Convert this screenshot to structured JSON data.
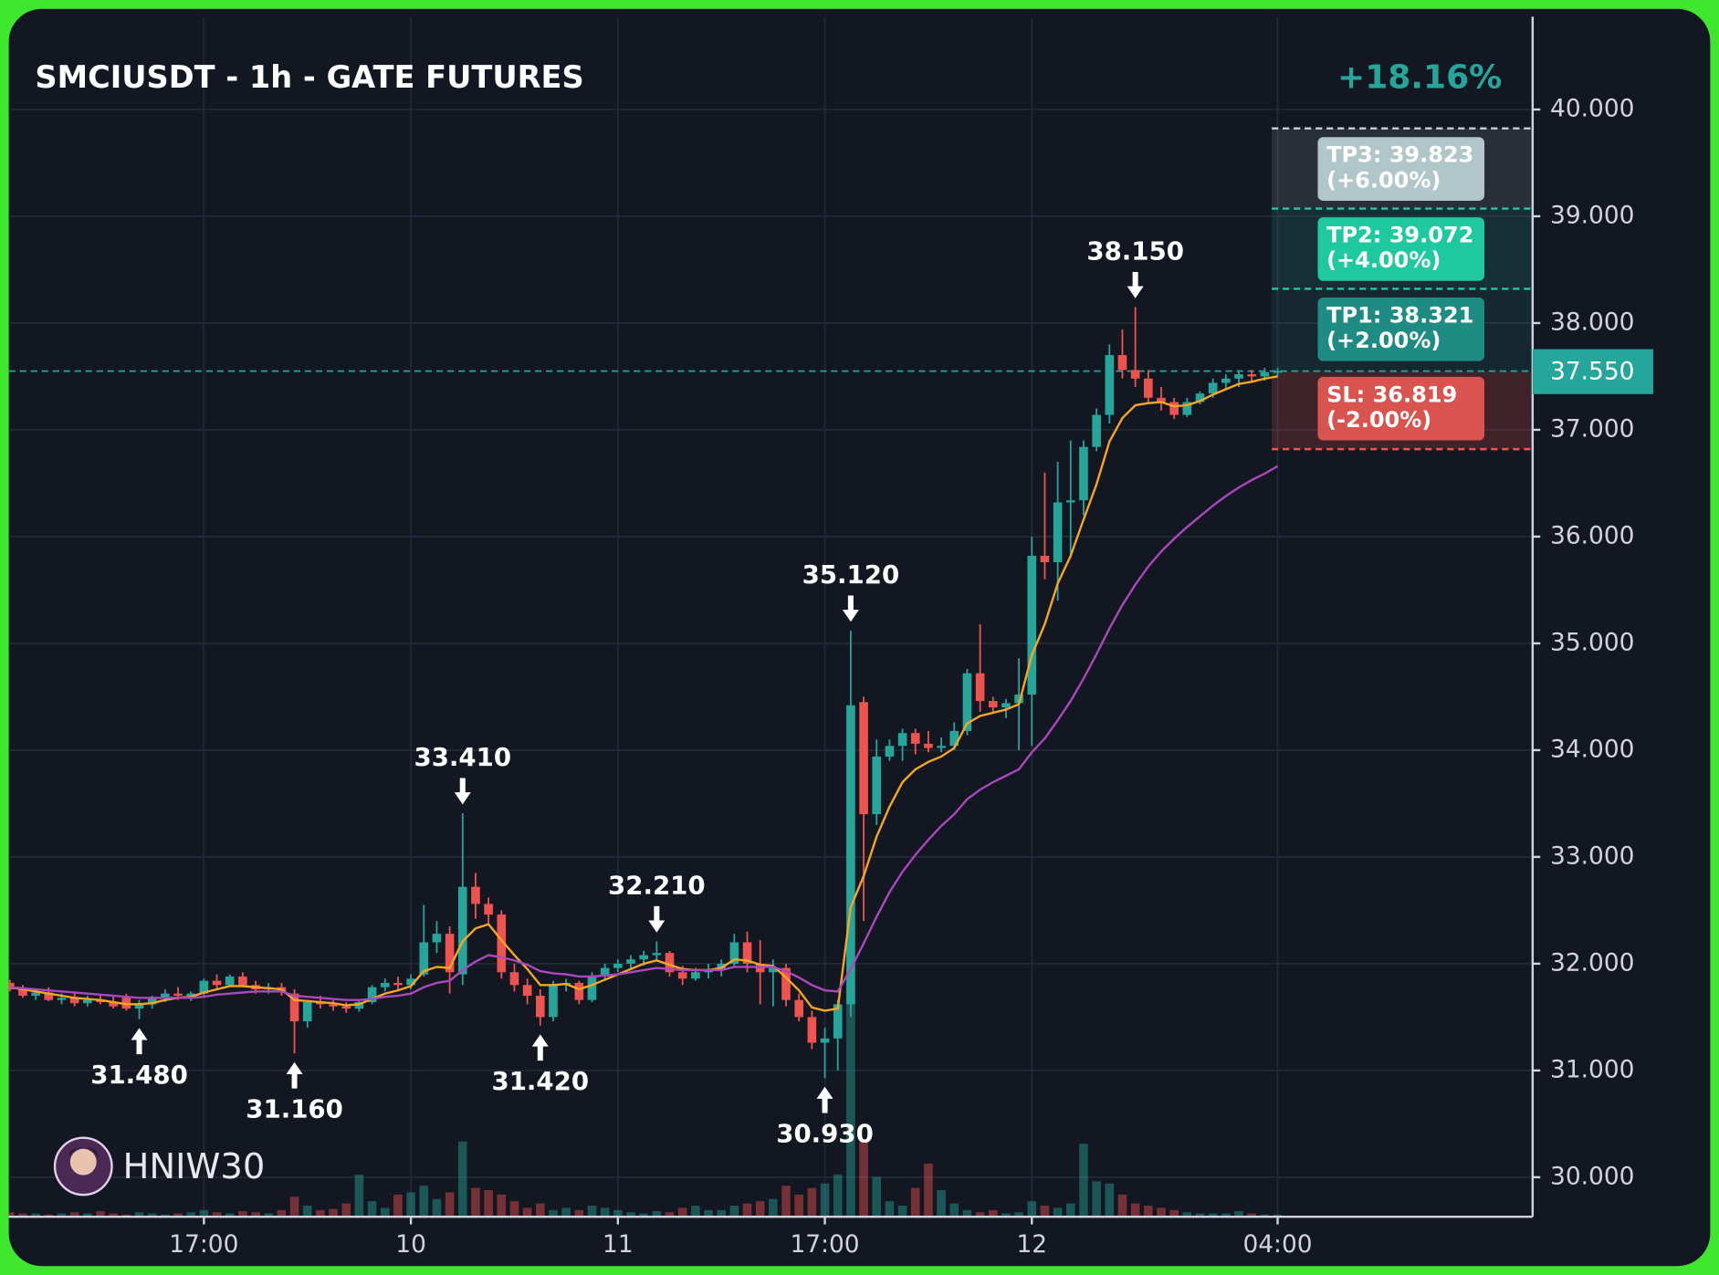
{
  "chart_data": {
    "type": "candlestick",
    "title": "SMCIUSDT - 1h - GATE FUTURES",
    "change": "+18.16%",
    "watermark": "HNIW30",
    "categories": [
      null,
      null,
      null,
      null,
      null,
      null,
      null,
      null,
      null,
      null,
      null,
      null,
      null,
      null,
      null,
      "17:00",
      null,
      null,
      null,
      null,
      null,
      null,
      null,
      null,
      null,
      null,
      null,
      null,
      null,
      null,
      null,
      "10",
      null,
      null,
      null,
      null,
      null,
      null,
      null,
      null,
      null,
      null,
      null,
      null,
      null,
      null,
      null,
      "11",
      null,
      null,
      null,
      null,
      null,
      null,
      null,
      null,
      null,
      null,
      null,
      null,
      null,
      null,
      null,
      "17:00",
      null,
      null,
      null,
      null,
      null,
      null,
      null,
      null,
      null,
      null,
      null,
      null,
      null,
      null,
      null,
      "12",
      null,
      null,
      null,
      null,
      null,
      null,
      null,
      null,
      null,
      null,
      null,
      null,
      null,
      null,
      null,
      null,
      null,
      null,
      "04:00"
    ],
    "ohlc": [
      [
        31.82,
        31.85,
        31.74,
        31.76
      ],
      [
        31.76,
        31.8,
        31.68,
        31.7
      ],
      [
        31.7,
        31.76,
        31.66,
        31.73
      ],
      [
        31.73,
        31.78,
        31.65,
        31.66
      ],
      [
        31.66,
        31.72,
        31.62,
        31.68
      ],
      [
        31.68,
        31.72,
        31.6,
        31.63
      ],
      [
        31.63,
        31.7,
        31.6,
        31.66
      ],
      [
        31.66,
        31.7,
        31.62,
        31.64
      ],
      [
        31.64,
        31.7,
        31.58,
        31.6
      ],
      [
        31.68,
        31.72,
        31.56,
        31.58
      ],
      [
        31.58,
        31.66,
        31.48,
        31.62
      ],
      [
        31.62,
        31.7,
        31.58,
        31.68
      ],
      [
        31.68,
        31.76,
        31.64,
        31.72
      ],
      [
        31.72,
        31.78,
        31.66,
        31.7
      ],
      [
        31.7,
        31.74,
        31.65,
        31.72
      ],
      [
        31.72,
        31.86,
        31.7,
        31.84
      ],
      [
        31.84,
        31.9,
        31.76,
        31.8
      ],
      [
        31.8,
        31.9,
        31.78,
        31.88
      ],
      [
        31.88,
        31.92,
        31.78,
        31.8
      ],
      [
        31.8,
        31.84,
        31.72,
        31.76
      ],
      [
        31.76,
        31.82,
        31.72,
        31.78
      ],
      [
        31.78,
        31.82,
        31.7,
        31.74
      ],
      [
        31.72,
        31.76,
        31.16,
        31.46
      ],
      [
        31.46,
        31.66,
        31.4,
        31.64
      ],
      [
        31.64,
        31.7,
        31.58,
        31.62
      ],
      [
        31.62,
        31.66,
        31.56,
        31.6
      ],
      [
        31.6,
        31.64,
        31.54,
        31.58
      ],
      [
        31.58,
        31.66,
        31.55,
        31.64
      ],
      [
        31.64,
        31.8,
        31.62,
        31.78
      ],
      [
        31.78,
        31.86,
        31.74,
        31.82
      ],
      [
        31.82,
        31.88,
        31.74,
        31.8
      ],
      [
        31.8,
        31.9,
        31.76,
        31.86
      ],
      [
        31.9,
        32.55,
        31.88,
        32.2
      ],
      [
        32.2,
        32.4,
        32.1,
        32.28
      ],
      [
        32.28,
        32.35,
        31.72,
        31.92
      ],
      [
        31.9,
        33.41,
        31.8,
        32.72
      ],
      [
        32.72,
        32.85,
        32.42,
        32.56
      ],
      [
        32.56,
        32.62,
        32.38,
        32.46
      ],
      [
        32.46,
        32.5,
        31.86,
        31.92
      ],
      [
        31.92,
        32.0,
        31.74,
        31.8
      ],
      [
        31.8,
        31.86,
        31.62,
        31.7
      ],
      [
        31.7,
        31.76,
        31.42,
        31.5
      ],
      [
        31.5,
        31.84,
        31.46,
        31.8
      ],
      [
        31.8,
        31.86,
        31.74,
        31.82
      ],
      [
        31.82,
        31.84,
        31.62,
        31.66
      ],
      [
        31.66,
        31.92,
        31.64,
        31.88
      ],
      [
        31.88,
        32.0,
        31.84,
        31.96
      ],
      [
        31.96,
        32.04,
        31.92,
        32.0
      ],
      [
        32.0,
        32.08,
        31.94,
        32.04
      ],
      [
        32.04,
        32.12,
        31.98,
        32.08
      ],
      [
        32.08,
        32.21,
        32.02,
        32.1
      ],
      [
        32.1,
        32.12,
        31.88,
        31.92
      ],
      [
        31.92,
        31.98,
        31.8,
        31.86
      ],
      [
        31.86,
        31.96,
        31.84,
        31.92
      ],
      [
        31.92,
        32.0,
        31.86,
        31.94
      ],
      [
        31.94,
        32.04,
        31.88,
        32.0
      ],
      [
        32.0,
        32.28,
        31.96,
        32.2
      ],
      [
        32.2,
        32.3,
        31.92,
        32.0
      ],
      [
        32.0,
        32.22,
        31.62,
        31.92
      ],
      [
        31.92,
        32.04,
        31.6,
        31.96
      ],
      [
        31.96,
        32.0,
        31.6,
        31.66
      ],
      [
        31.66,
        31.72,
        31.46,
        31.5
      ],
      [
        31.5,
        31.56,
        31.2,
        31.26
      ],
      [
        31.26,
        31.4,
        30.93,
        31.3
      ],
      [
        31.3,
        31.66,
        31.0,
        31.62
      ],
      [
        31.62,
        35.12,
        31.5,
        34.42
      ],
      [
        34.45,
        34.5,
        32.4,
        33.4
      ],
      [
        33.4,
        34.1,
        33.3,
        33.94
      ],
      [
        33.94,
        34.1,
        33.9,
        34.04
      ],
      [
        34.04,
        34.2,
        33.9,
        34.16
      ],
      [
        34.16,
        34.2,
        33.96,
        34.06
      ],
      [
        34.06,
        34.18,
        33.98,
        34.02
      ],
      [
        34.02,
        34.12,
        33.98,
        34.04
      ],
      [
        34.04,
        34.26,
        34.0,
        34.18
      ],
      [
        34.18,
        34.76,
        34.14,
        34.72
      ],
      [
        34.72,
        35.18,
        34.36,
        34.46
      ],
      [
        34.46,
        34.5,
        34.36,
        34.4
      ],
      [
        34.4,
        34.48,
        34.3,
        34.44
      ],
      [
        34.44,
        34.86,
        34.0,
        34.52
      ],
      [
        34.52,
        36.0,
        34.04,
        35.82
      ],
      [
        35.82,
        36.6,
        35.6,
        35.76
      ],
      [
        35.76,
        36.7,
        35.4,
        36.32
      ],
      [
        36.32,
        36.9,
        35.8,
        36.34
      ],
      [
        36.34,
        36.9,
        36.2,
        36.84
      ],
      [
        36.84,
        37.2,
        36.8,
        37.14
      ],
      [
        37.14,
        37.8,
        37.06,
        37.7
      ],
      [
        37.7,
        37.94,
        37.48,
        37.56
      ],
      [
        37.56,
        38.15,
        37.4,
        37.48
      ],
      [
        37.48,
        37.56,
        37.26,
        37.3
      ],
      [
        37.3,
        37.4,
        37.18,
        37.26
      ],
      [
        37.26,
        37.3,
        37.1,
        37.14
      ],
      [
        37.14,
        37.3,
        37.12,
        37.26
      ],
      [
        37.26,
        37.36,
        37.24,
        37.34
      ],
      [
        37.34,
        37.48,
        37.3,
        37.44
      ],
      [
        37.44,
        37.52,
        37.38,
        37.48
      ],
      [
        37.48,
        37.56,
        37.4,
        37.52
      ],
      [
        37.52,
        37.56,
        37.44,
        37.5
      ],
      [
        37.5,
        37.58,
        37.46,
        37.54
      ],
      [
        37.54,
        37.58,
        37.5,
        37.55
      ]
    ],
    "volume": [
      4,
      3,
      3,
      2,
      3,
      4,
      3,
      5,
      3,
      2,
      4,
      3,
      2,
      3,
      4,
      6,
      4,
      3,
      5,
      4,
      3,
      6,
      18,
      10,
      6,
      7,
      12,
      38,
      14,
      8,
      20,
      22,
      28,
      16,
      22,
      68,
      26,
      24,
      20,
      14,
      8,
      12,
      6,
      8,
      6,
      10,
      8,
      6,
      4,
      3,
      5,
      4,
      8,
      10,
      6,
      6,
      10,
      12,
      14,
      16,
      28,
      20,
      26,
      30,
      38,
      198,
      70,
      36,
      14,
      10,
      26,
      48,
      24,
      12,
      6,
      4,
      6,
      3,
      4,
      14,
      10,
      8,
      12,
      66,
      32,
      30,
      20,
      12,
      10,
      8,
      6,
      4,
      3,
      3,
      3,
      5,
      3,
      2,
      2
    ],
    "lines": [
      {
        "color": "#f5a623",
        "values": [
          31.78,
          31.76,
          31.74,
          31.72,
          31.7,
          31.68,
          31.67,
          31.66,
          31.64,
          31.62,
          31.62,
          31.63,
          31.66,
          31.68,
          31.69,
          31.73,
          31.76,
          31.79,
          31.79,
          31.78,
          31.77,
          31.76,
          31.66,
          31.65,
          31.64,
          31.63,
          31.61,
          31.62,
          31.67,
          31.72,
          31.75,
          31.79,
          31.93,
          31.97,
          31.96,
          32.21,
          32.33,
          32.37,
          32.22,
          32.08,
          31.95,
          31.8,
          31.8,
          31.81,
          31.76,
          31.8,
          31.85,
          31.9,
          31.95,
          32.0,
          32.03,
          31.99,
          31.95,
          31.94,
          31.94,
          31.96,
          32.04,
          32.03,
          31.99,
          31.98,
          31.87,
          31.75,
          31.59,
          31.56,
          31.58,
          32.53,
          32.82,
          33.19,
          33.47,
          33.7,
          33.82,
          33.89,
          33.94,
          34.02,
          34.25,
          34.32,
          34.35,
          34.38,
          34.43,
          34.89,
          35.18,
          35.56,
          35.82,
          36.16,
          36.49,
          36.89,
          37.11,
          37.23,
          37.25,
          37.26,
          37.22,
          37.23,
          37.27,
          37.33,
          37.38,
          37.43,
          37.45,
          37.48,
          37.5
        ]
      },
      {
        "color": "#ab47bc",
        "values": [
          31.78,
          31.77,
          31.76,
          31.75,
          31.74,
          31.73,
          31.72,
          31.71,
          31.7,
          31.69,
          31.68,
          31.68,
          31.68,
          31.68,
          31.68,
          31.69,
          31.71,
          31.72,
          31.73,
          31.74,
          31.74,
          31.74,
          31.7,
          31.69,
          31.68,
          31.67,
          31.66,
          31.66,
          31.67,
          31.69,
          31.7,
          31.72,
          31.78,
          31.82,
          31.84,
          31.94,
          32.02,
          32.08,
          32.06,
          32.03,
          31.99,
          31.93,
          31.91,
          31.9,
          31.88,
          31.88,
          31.89,
          31.9,
          31.92,
          31.94,
          31.96,
          31.95,
          31.94,
          31.94,
          31.94,
          31.94,
          31.97,
          31.97,
          31.97,
          31.97,
          31.93,
          31.87,
          31.8,
          31.75,
          31.74,
          31.95,
          32.19,
          32.44,
          32.67,
          32.86,
          33.02,
          33.16,
          33.29,
          33.4,
          33.54,
          33.63,
          33.7,
          33.76,
          33.82,
          33.98,
          34.11,
          34.28,
          34.46,
          34.67,
          34.9,
          35.14,
          35.36,
          35.55,
          35.72,
          35.86,
          35.98,
          36.09,
          36.19,
          36.29,
          36.38,
          36.46,
          36.53,
          36.59,
          36.66
        ]
      }
    ],
    "up_color": "#26a69a",
    "down_color": "#ef5350",
    "ylim": [
      29.63,
      40.87
    ],
    "yticks": [
      {
        "value": 30,
        "label": "30.000"
      },
      {
        "value": 31,
        "label": "31.000"
      },
      {
        "value": 32,
        "label": "32.000"
      },
      {
        "value": 33,
        "label": "33.000"
      },
      {
        "value": 34,
        "label": "34.000"
      },
      {
        "value": 35,
        "label": "35.000"
      },
      {
        "value": 36,
        "label": "36.000"
      },
      {
        "value": 37,
        "label": "37.000"
      },
      {
        "value": 38,
        "label": "38.000"
      },
      {
        "value": 39,
        "label": "39.000"
      },
      {
        "value": 40,
        "label": "40.000"
      }
    ],
    "grid": true,
    "annotations": [
      {
        "value": 31.48,
        "label": "31.480"
      },
      {
        "value": 31.16,
        "label": "31.160"
      },
      {
        "value": 33.41,
        "label": "33.410"
      },
      {
        "value": 31.42,
        "label": "31.420"
      },
      {
        "value": 32.21,
        "label": "32.210"
      },
      {
        "value": 30.93,
        "label": "30.930"
      },
      {
        "value": 35.12,
        "label": "35.120"
      },
      {
        "value": 38.15,
        "label": "38.150"
      }
    ],
    "last_price": {
      "value": 37.55,
      "label": "37.550",
      "color": "#26a69a"
    },
    "targets": [
      {
        "value": 39.823,
        "label": "TP3: 39.823",
        "pct": "(+6.00%)",
        "color": "#b0c6c8",
        "line": "#c8d0d8",
        "zone": "rgba(190,205,215,0.13)"
      },
      {
        "value": 39.072,
        "label": "TP2: 39.072",
        "pct": "(+4.00%)",
        "color": "#1fc9a0",
        "line": "#26c6a6",
        "zone": "rgba(38,198,166,0.14)"
      },
      {
        "value": 38.321,
        "label": "TP1: 38.321",
        "pct": "(+2.00%)",
        "color": "#1f8c84",
        "line": "#26c6a6",
        "zone": "rgba(38,166,154,0.12)"
      }
    ],
    "stop": {
      "value": 36.819,
      "label": "SL: 36.819",
      "pct": "(-2.00%)",
      "color": "#d9534f",
      "line": "#ef5350",
      "zone": "rgba(239,83,80,0.2)"
    }
  }
}
